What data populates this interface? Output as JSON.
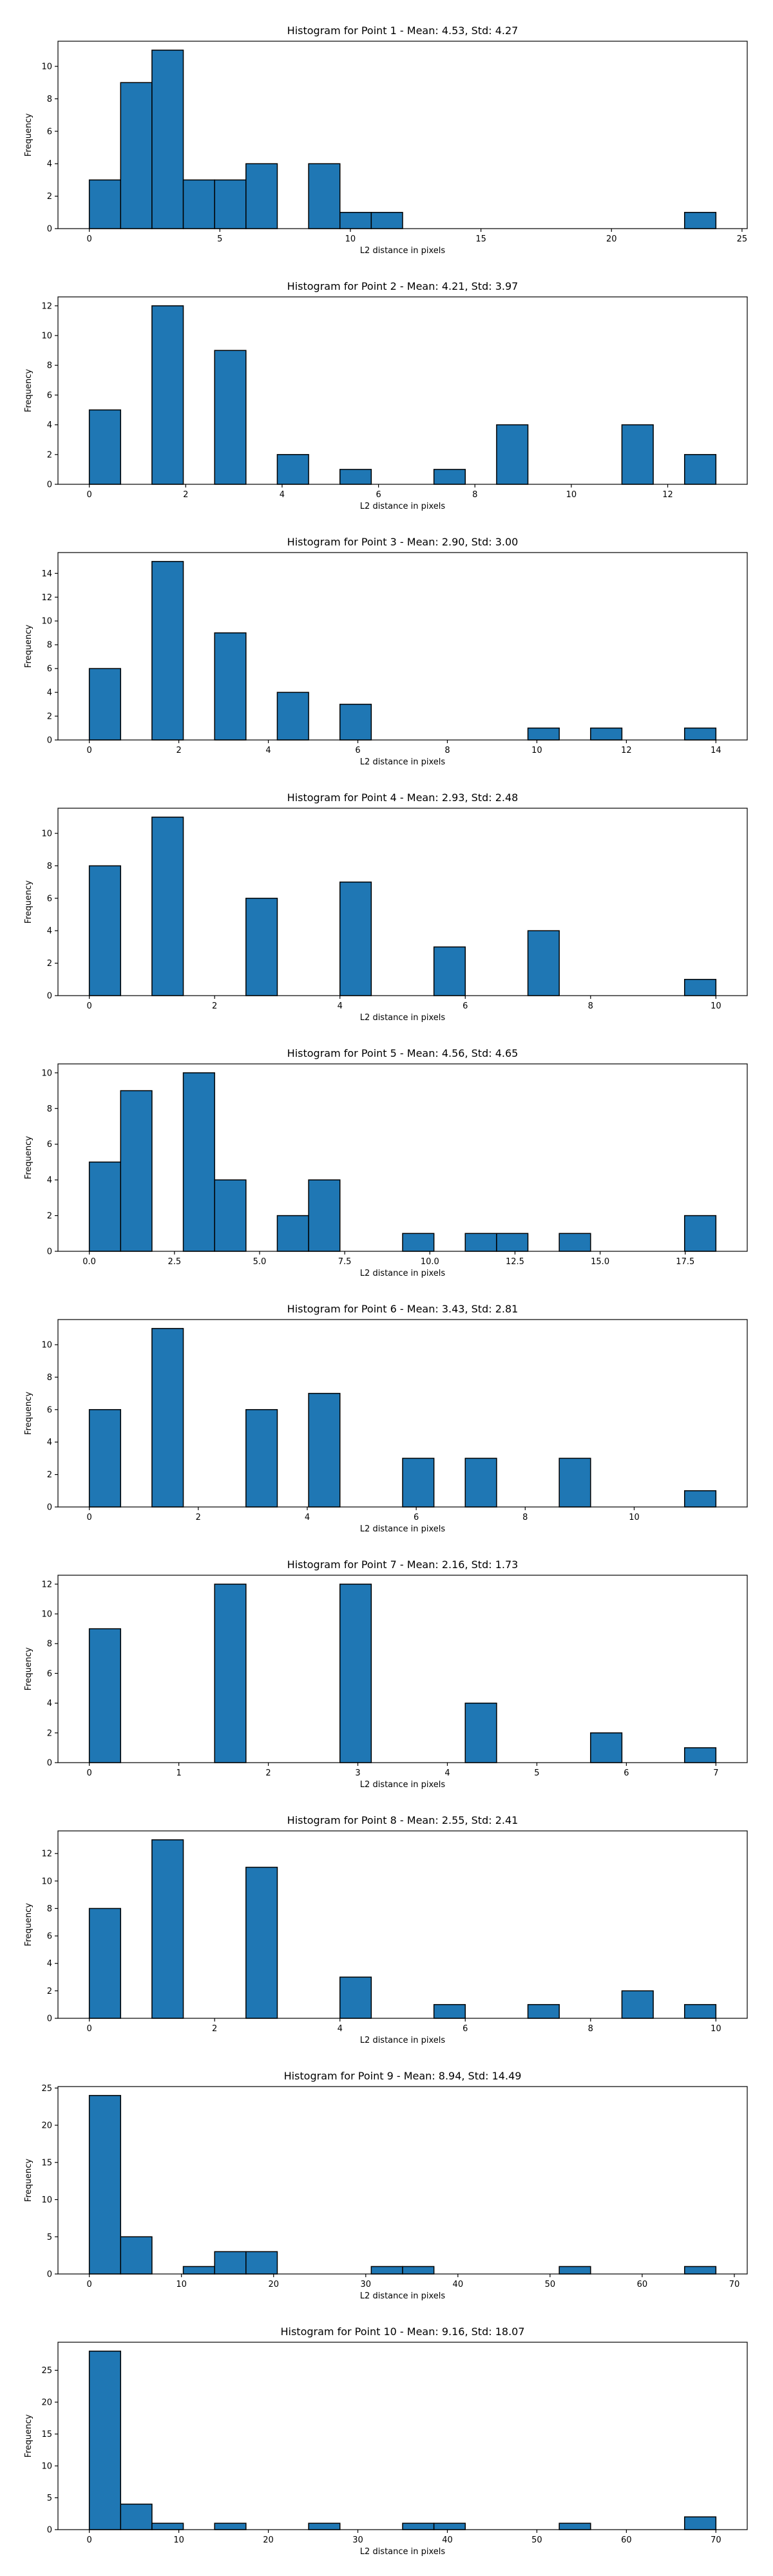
{
  "chart_data": [
    {
      "type": "bar",
      "title": "Histogram for Point 1 - Mean: 4.53, Std: 4.27",
      "xlabel": "L2 distance in pixels",
      "ylabel": "Frequency",
      "xlim": [
        -1.2,
        25.2
      ],
      "ylim": [
        0,
        11.55
      ],
      "bin_width": 1.2,
      "bars": [
        [
          0,
          3
        ],
        [
          1.2,
          9
        ],
        [
          2.4,
          11
        ],
        [
          3.6,
          3
        ],
        [
          4.8,
          3
        ],
        [
          6.0,
          4
        ],
        [
          8.4,
          4
        ],
        [
          9.6,
          1
        ],
        [
          10.8,
          1
        ],
        [
          22.8,
          1
        ]
      ],
      "x_ticks": [
        "0",
        "5",
        "10",
        "15",
        "20",
        "25"
      ],
      "x_tick_values": [
        0,
        5,
        10,
        15,
        20,
        25
      ],
      "y_ticks": [
        "0",
        "2",
        "4",
        "6",
        "8",
        "10"
      ],
      "y_tick_values": [
        0,
        2,
        4,
        6,
        8,
        10
      ],
      "grid": false
    },
    {
      "type": "bar",
      "title": "Histogram for Point 2 - Mean: 4.21, Std: 3.97",
      "xlabel": "L2 distance in pixels",
      "ylabel": "Frequency",
      "xlim": [
        -0.65,
        13.65
      ],
      "ylim": [
        0,
        12.6
      ],
      "bin_width": 0.65,
      "bars": [
        [
          0,
          5
        ],
        [
          1.3,
          12
        ],
        [
          2.6,
          9
        ],
        [
          3.9,
          2
        ],
        [
          5.2,
          1
        ],
        [
          7.15,
          1
        ],
        [
          8.45,
          4
        ],
        [
          11.05,
          4
        ],
        [
          12.35,
          2
        ]
      ],
      "x_ticks": [
        "0",
        "2",
        "4",
        "6",
        "8",
        "10",
        "12"
      ],
      "x_tick_values": [
        0,
        2,
        4,
        6,
        8,
        10,
        12
      ],
      "y_ticks": [
        "0",
        "2",
        "4",
        "6",
        "8",
        "10",
        "12"
      ],
      "y_tick_values": [
        0,
        2,
        4,
        6,
        8,
        10,
        12
      ],
      "grid": false
    },
    {
      "type": "bar",
      "title": "Histogram for Point 3 - Mean: 2.90, Std: 3.00",
      "xlabel": "L2 distance in pixels",
      "ylabel": "Frequency",
      "xlim": [
        -0.7,
        14.7
      ],
      "ylim": [
        0,
        15.75
      ],
      "bin_width": 0.7,
      "bars": [
        [
          0,
          6
        ],
        [
          1.4,
          15
        ],
        [
          2.8,
          9
        ],
        [
          4.2,
          4
        ],
        [
          5.6,
          3
        ],
        [
          9.8,
          1
        ],
        [
          11.2,
          1
        ],
        [
          13.3,
          1
        ]
      ],
      "x_ticks": [
        "0",
        "2",
        "4",
        "6",
        "8",
        "10",
        "12",
        "14"
      ],
      "x_tick_values": [
        0,
        2,
        4,
        6,
        8,
        10,
        12,
        14
      ],
      "y_ticks": [
        "0",
        "2",
        "4",
        "6",
        "8",
        "10",
        "12",
        "14"
      ],
      "y_tick_values": [
        0,
        2,
        4,
        6,
        8,
        10,
        12,
        14
      ],
      "grid": false
    },
    {
      "type": "bar",
      "title": "Histogram for Point 4 - Mean: 2.93, Std: 2.48",
      "xlabel": "L2 distance in pixels",
      "ylabel": "Frequency",
      "xlim": [
        -0.5,
        10.5
      ],
      "ylim": [
        0,
        11.55
      ],
      "bin_width": 0.5,
      "bars": [
        [
          0,
          8
        ],
        [
          1.0,
          11
        ],
        [
          2.5,
          6
        ],
        [
          4.0,
          7
        ],
        [
          5.5,
          3
        ],
        [
          7.0,
          4
        ],
        [
          9.5,
          1
        ]
      ],
      "x_ticks": [
        "0",
        "2",
        "4",
        "6",
        "8",
        "10"
      ],
      "x_tick_values": [
        0,
        2,
        4,
        6,
        8,
        10
      ],
      "y_ticks": [
        "0",
        "2",
        "4",
        "6",
        "8",
        "10"
      ],
      "y_tick_values": [
        0,
        2,
        4,
        6,
        8,
        10
      ],
      "grid": false
    },
    {
      "type": "bar",
      "title": "Histogram for Point 5 - Mean: 4.56, Std: 4.65",
      "xlabel": "L2 distance in pixels",
      "ylabel": "Frequency",
      "xlim": [
        -0.92,
        19.32
      ],
      "ylim": [
        0,
        10.5
      ],
      "bin_width": 0.92,
      "bars": [
        [
          0,
          5
        ],
        [
          0.92,
          9
        ],
        [
          2.76,
          10
        ],
        [
          3.68,
          4
        ],
        [
          5.52,
          2
        ],
        [
          6.44,
          4
        ],
        [
          9.2,
          1
        ],
        [
          11.04,
          1
        ],
        [
          11.96,
          1
        ],
        [
          13.8,
          1
        ],
        [
          17.48,
          2
        ]
      ],
      "x_ticks": [
        "0.0",
        "2.5",
        "5.0",
        "7.5",
        "10.0",
        "12.5",
        "15.0",
        "17.5"
      ],
      "x_tick_values": [
        0,
        2.5,
        5,
        7.5,
        10,
        12.5,
        15,
        17.5
      ],
      "y_ticks": [
        "0",
        "2",
        "4",
        "6",
        "8",
        "10"
      ],
      "y_tick_values": [
        0,
        2,
        4,
        6,
        8,
        10
      ],
      "grid": false
    },
    {
      "type": "bar",
      "title": "Histogram for Point 6 - Mean: 3.43, Std: 2.81",
      "xlabel": "L2 distance in pixels",
      "ylabel": "Frequency",
      "xlim": [
        -0.575,
        12.075
      ],
      "ylim": [
        0,
        11.55
      ],
      "bin_width": 0.575,
      "bars": [
        [
          0,
          6
        ],
        [
          1.15,
          11
        ],
        [
          2.875,
          6
        ],
        [
          4.025,
          7
        ],
        [
          5.75,
          3
        ],
        [
          6.9,
          3
        ],
        [
          8.625,
          3
        ],
        [
          10.925,
          1
        ]
      ],
      "x_ticks": [
        "0",
        "2",
        "4",
        "6",
        "8",
        "10"
      ],
      "x_tick_values": [
        0,
        2,
        4,
        6,
        8,
        10
      ],
      "y_ticks": [
        "0",
        "2",
        "4",
        "6",
        "8",
        "10"
      ],
      "y_tick_values": [
        0,
        2,
        4,
        6,
        8,
        10
      ],
      "grid": false
    },
    {
      "type": "bar",
      "title": "Histogram for Point 7 - Mean: 2.16, Std: 1.73",
      "xlabel": "L2 distance in pixels",
      "ylabel": "Frequency",
      "xlim": [
        -0.35,
        7.35
      ],
      "ylim": [
        0,
        12.6
      ],
      "bin_width": 0.35,
      "bars": [
        [
          0,
          9
        ],
        [
          1.4,
          12
        ],
        [
          2.8,
          12
        ],
        [
          4.2,
          4
        ],
        [
          5.6,
          2
        ],
        [
          6.65,
          1
        ]
      ],
      "x_ticks": [
        "0",
        "1",
        "2",
        "3",
        "4",
        "5",
        "6",
        "7"
      ],
      "x_tick_values": [
        0,
        1,
        2,
        3,
        4,
        5,
        6,
        7
      ],
      "y_ticks": [
        "0",
        "2",
        "4",
        "6",
        "8",
        "10",
        "12"
      ],
      "y_tick_values": [
        0,
        2,
        4,
        6,
        8,
        10,
        12
      ],
      "grid": false
    },
    {
      "type": "bar",
      "title": "Histogram for Point 8 - Mean: 2.55, Std: 2.41",
      "xlabel": "L2 distance in pixels",
      "ylabel": "Frequency",
      "xlim": [
        -0.5,
        10.5
      ],
      "ylim": [
        0,
        13.65
      ],
      "bin_width": 0.5,
      "bars": [
        [
          0,
          8
        ],
        [
          1.0,
          13
        ],
        [
          2.5,
          11
        ],
        [
          4.0,
          3
        ],
        [
          5.5,
          1
        ],
        [
          7.0,
          1
        ],
        [
          8.5,
          2
        ],
        [
          9.5,
          1
        ]
      ],
      "x_ticks": [
        "0",
        "2",
        "4",
        "6",
        "8",
        "10"
      ],
      "x_tick_values": [
        0,
        2,
        4,
        6,
        8,
        10
      ],
      "y_ticks": [
        "0",
        "2",
        "4",
        "6",
        "8",
        "10",
        "12"
      ],
      "y_tick_values": [
        0,
        2,
        4,
        6,
        8,
        10,
        12
      ],
      "grid": false
    },
    {
      "type": "bar",
      "title": "Histogram for Point 9 - Mean: 8.94, Std: 14.49",
      "xlabel": "L2 distance in pixels",
      "ylabel": "Frequency",
      "xlim": [
        -3.4,
        71.4
      ],
      "ylim": [
        0,
        25.2
      ],
      "bin_width": 3.4,
      "bars": [
        [
          0,
          24
        ],
        [
          3.4,
          5
        ],
        [
          10.2,
          1
        ],
        [
          13.6,
          3
        ],
        [
          17.0,
          3
        ],
        [
          30.6,
          1
        ],
        [
          34.0,
          1
        ],
        [
          51.0,
          1
        ],
        [
          64.6,
          1
        ]
      ],
      "x_ticks": [
        "0",
        "10",
        "20",
        "30",
        "40",
        "50",
        "60",
        "70"
      ],
      "x_tick_values": [
        0,
        10,
        20,
        30,
        40,
        50,
        60,
        70
      ],
      "y_ticks": [
        "0",
        "5",
        "10",
        "15",
        "20",
        "25"
      ],
      "y_tick_values": [
        0,
        5,
        10,
        15,
        20,
        25
      ],
      "grid": false
    },
    {
      "type": "bar",
      "title": "Histogram for Point 10 - Mean: 9.16, Std: 18.07",
      "xlabel": "L2 distance in pixels",
      "ylabel": "Frequency",
      "xlim": [
        -3.5,
        73.5
      ],
      "ylim": [
        0,
        29.4
      ],
      "bin_width": 3.5,
      "bars": [
        [
          0,
          28
        ],
        [
          3.5,
          4
        ],
        [
          7.0,
          1
        ],
        [
          14.0,
          1
        ],
        [
          24.5,
          1
        ],
        [
          35.0,
          1
        ],
        [
          38.5,
          1
        ],
        [
          52.5,
          1
        ],
        [
          66.5,
          2
        ]
      ],
      "x_ticks": [
        "0",
        "10",
        "20",
        "30",
        "40",
        "50",
        "60",
        "70"
      ],
      "x_tick_values": [
        0,
        10,
        20,
        30,
        40,
        50,
        60,
        70
      ],
      "y_ticks": [
        "0",
        "5",
        "10",
        "15",
        "20",
        "25"
      ],
      "y_tick_values": [
        0,
        5,
        10,
        15,
        20,
        25
      ],
      "grid": false
    }
  ]
}
